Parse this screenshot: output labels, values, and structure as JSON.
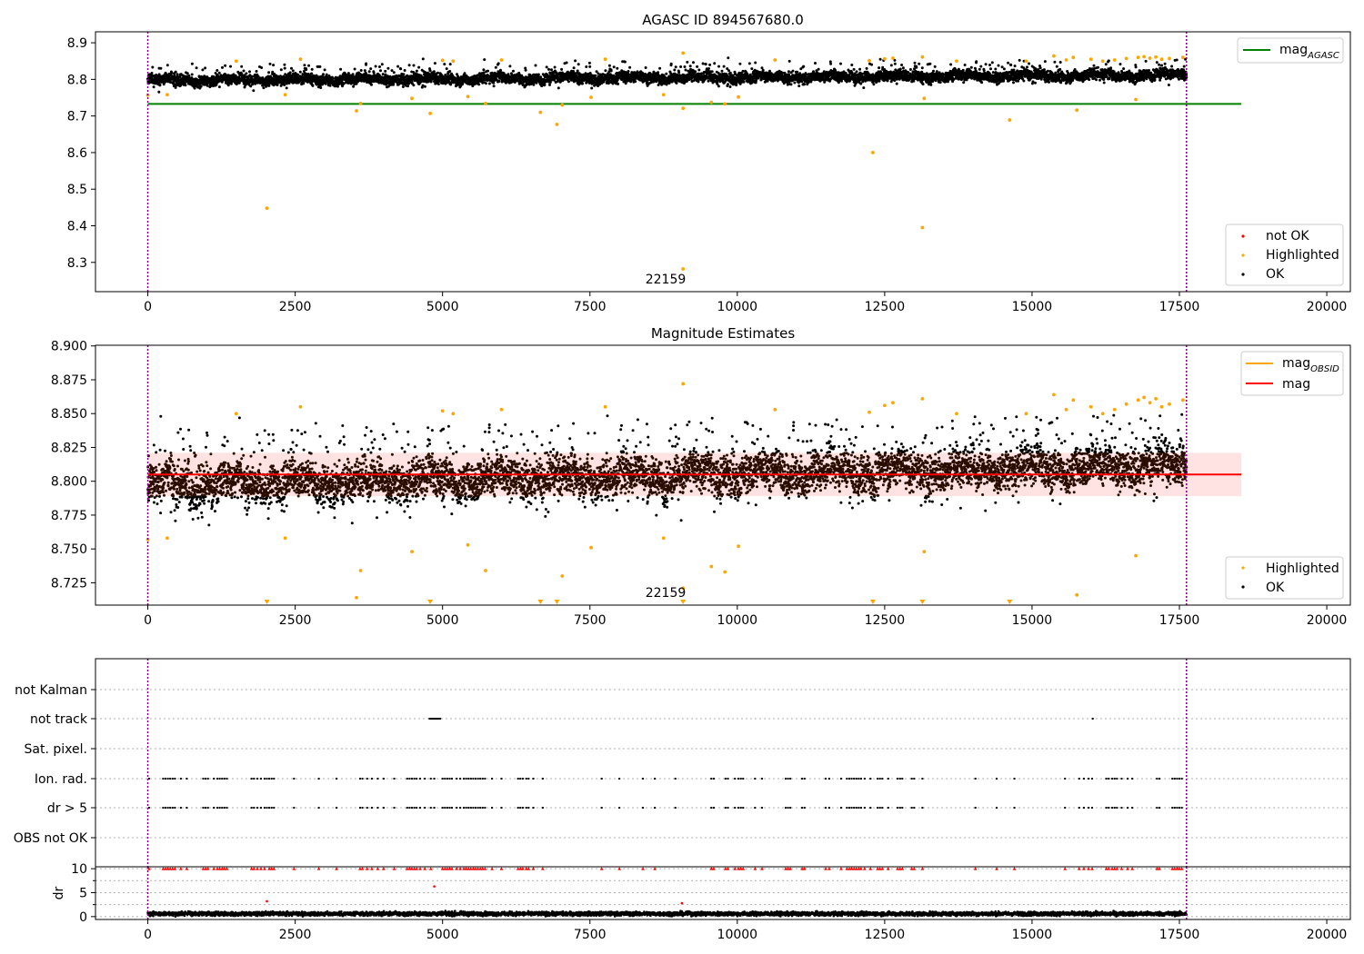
{
  "figure": {
    "width": 1500,
    "height": 1050
  },
  "chart_data": [
    {
      "id": "top",
      "type": "scatter",
      "title": "AGASC ID 894567680.0",
      "xlim": [
        -888,
        20400
      ],
      "ylim": [
        8.22,
        8.93
      ],
      "xticks": [
        0,
        2500,
        5000,
        7500,
        10000,
        12500,
        15000,
        17500,
        20000
      ],
      "yticks": [
        8.3,
        8.4,
        8.5,
        8.6,
        8.7,
        8.8,
        8.9
      ],
      "ytick_labels": [
        "8.3",
        "8.4",
        "8.5",
        "8.6",
        "8.7",
        "8.8",
        "8.9"
      ],
      "vlines": [
        0,
        17620
      ],
      "obsid_label": {
        "text": "22159",
        "x": 8800,
        "y": 8.25
      },
      "mag_agasc": {
        "value": 8.733,
        "x_range": [
          0,
          18550
        ],
        "color": "#008000"
      },
      "ok_series": {
        "name": "OK",
        "x_range": [
          0,
          17620
        ],
        "baseline_start": 8.797,
        "baseline_end": 8.812,
        "spread": 0.02,
        "approx_count": 7000,
        "color": "#000000"
      },
      "highlighted": {
        "name": "Highlighted",
        "color": "#ffa500",
        "points": [
          [
            0,
            8.757
          ],
          [
            330,
            8.758
          ],
          [
            1500,
            8.85
          ],
          [
            2020,
            8.448
          ],
          [
            2330,
            8.758
          ],
          [
            2590,
            8.855
          ],
          [
            3540,
            8.714
          ],
          [
            3610,
            8.734
          ],
          [
            4480,
            8.748
          ],
          [
            4790,
            8.707
          ],
          [
            5000,
            8.852
          ],
          [
            5180,
            8.85
          ],
          [
            5430,
            8.753
          ],
          [
            5730,
            8.734
          ],
          [
            6000,
            8.853
          ],
          [
            6660,
            8.71
          ],
          [
            6940,
            8.677
          ],
          [
            7030,
            8.73
          ],
          [
            7520,
            8.751
          ],
          [
            7760,
            8.855
          ],
          [
            8750,
            8.758
          ],
          [
            9080,
            8.872
          ],
          [
            9080,
            8.721
          ],
          [
            9080,
            8.282
          ],
          [
            9560,
            8.737
          ],
          [
            9790,
            8.733
          ],
          [
            10020,
            8.752
          ],
          [
            10640,
            8.853
          ],
          [
            12240,
            8.851
          ],
          [
            12300,
            8.6
          ],
          [
            12500,
            8.856
          ],
          [
            12640,
            8.858
          ],
          [
            13140,
            8.861
          ],
          [
            13140,
            8.395
          ],
          [
            13170,
            8.748
          ],
          [
            13720,
            8.85
          ],
          [
            14620,
            8.689
          ],
          [
            14900,
            8.85
          ],
          [
            15370,
            8.864
          ],
          [
            15580,
            8.853
          ],
          [
            15700,
            8.86
          ],
          [
            15760,
            8.716
          ],
          [
            16000,
            8.855
          ],
          [
            16200,
            8.85
          ],
          [
            16400,
            8.853
          ],
          [
            16600,
            8.857
          ],
          [
            16760,
            8.745
          ],
          [
            16800,
            8.86
          ],
          [
            16900,
            8.862
          ],
          [
            17000,
            8.858
          ],
          [
            17100,
            8.861
          ],
          [
            17200,
            8.855
          ],
          [
            17330,
            8.857
          ],
          [
            17560,
            8.86
          ]
        ]
      },
      "not_ok": {
        "name": "not OK",
        "color": "#ff0000",
        "points": []
      },
      "legend_upper": [
        {
          "label": "mag",
          "sub": "AGASC",
          "color": "#008000"
        }
      ],
      "legend_lower": [
        {
          "label": "not OK",
          "color": "#ff0000"
        },
        {
          "label": "Highlighted",
          "color": "#ffa500"
        },
        {
          "label": "OK",
          "color": "#000000"
        }
      ]
    },
    {
      "id": "mid",
      "type": "scatter",
      "title": "Magnitude Estimates",
      "xlim": [
        -888,
        20400
      ],
      "ylim": [
        8.7085,
        8.9005
      ],
      "xticks": [
        0,
        2500,
        5000,
        7500,
        10000,
        12500,
        15000,
        17500,
        20000
      ],
      "yticks": [
        8.725,
        8.75,
        8.775,
        8.8,
        8.825,
        8.85,
        8.875,
        8.9
      ],
      "ytick_labels": [
        "8.725",
        "8.750",
        "8.775",
        "8.800",
        "8.825",
        "8.850",
        "8.875",
        "8.900"
      ],
      "vlines": [
        0,
        17620
      ],
      "obsid_label": {
        "text": "22159",
        "x": 8800,
        "y": 8.712
      },
      "mag": {
        "value": 8.805,
        "x_range": [
          0,
          18550
        ],
        "color": "#ff0000"
      },
      "mag_band": {
        "low": 8.789,
        "high": 8.821,
        "x_range": [
          0,
          18550
        ]
      },
      "mag_obsid": {
        "value": 8.805,
        "color": "#ffa500"
      },
      "ok_series": {
        "name": "OK",
        "x_range": [
          0,
          17620
        ],
        "baseline_start": 8.797,
        "baseline_end": 8.812,
        "spread": 0.02,
        "approx_count": 7000,
        "color": "#000000"
      },
      "highlighted": {
        "name": "Highlighted",
        "color": "#ffa500",
        "points": [
          [
            0,
            8.757
          ],
          [
            330,
            8.758
          ],
          [
            1500,
            8.85
          ],
          [
            2330,
            8.758
          ],
          [
            2590,
            8.855
          ],
          [
            3540,
            8.714
          ],
          [
            3610,
            8.734
          ],
          [
            4480,
            8.748
          ],
          [
            5000,
            8.852
          ],
          [
            5180,
            8.85
          ],
          [
            5430,
            8.753
          ],
          [
            5730,
            8.734
          ],
          [
            6000,
            8.853
          ],
          [
            7030,
            8.73
          ],
          [
            7520,
            8.751
          ],
          [
            7760,
            8.855
          ],
          [
            8750,
            8.758
          ],
          [
            9080,
            8.872
          ],
          [
            9080,
            8.721
          ],
          [
            9560,
            8.737
          ],
          [
            9790,
            8.733
          ],
          [
            10020,
            8.752
          ],
          [
            10640,
            8.853
          ],
          [
            12240,
            8.851
          ],
          [
            12500,
            8.856
          ],
          [
            12640,
            8.858
          ],
          [
            13140,
            8.861
          ],
          [
            13170,
            8.748
          ],
          [
            13720,
            8.85
          ],
          [
            14900,
            8.85
          ],
          [
            15370,
            8.864
          ],
          [
            15580,
            8.853
          ],
          [
            15700,
            8.86
          ],
          [
            15760,
            8.716
          ],
          [
            16000,
            8.855
          ],
          [
            16200,
            8.85
          ],
          [
            16400,
            8.853
          ],
          [
            16600,
            8.857
          ],
          [
            16760,
            8.745
          ],
          [
            16800,
            8.86
          ],
          [
            16900,
            8.862
          ],
          [
            17000,
            8.858
          ],
          [
            17100,
            8.861
          ],
          [
            17200,
            8.855
          ],
          [
            17330,
            8.857
          ],
          [
            17560,
            8.86
          ]
        ]
      },
      "below_range_markers": [
        2020,
        4790,
        6660,
        6940,
        9080,
        12300,
        13140,
        14620
      ],
      "legend_upper": [
        {
          "label": "mag",
          "sub": "OBSID",
          "color": "#ffa500"
        },
        {
          "label": "mag",
          "sub": "",
          "color": "#ff0000"
        }
      ],
      "legend_lower": [
        {
          "label": "Highlighted",
          "color": "#ffa500"
        },
        {
          "label": "OK",
          "color": "#000000"
        }
      ]
    },
    {
      "id": "flags",
      "type": "scatter",
      "xlim": [
        -888,
        20400
      ],
      "vlines": [
        0,
        17620
      ],
      "categories": [
        "not Kalman",
        "not track",
        "Sat. pixel.",
        "Ion. rad.",
        "dr > 5",
        "OBS not OK"
      ],
      "flag_points": {
        "not Kalman": [],
        "not track": [
          4780,
          4800,
          4820,
          4840,
          4860,
          4880,
          4900,
          4920,
          4940,
          4960,
          16030
        ],
        "Sat. pixel.": [],
        "Ion. rad.": [
          20,
          260,
          300,
          340,
          380,
          420,
          460,
          560,
          660,
          940,
          980,
          1020,
          1120,
          1180,
          1220,
          1260,
          1300,
          1340,
          1760,
          1800,
          1860,
          1920,
          1980,
          2020,
          2060,
          2100,
          2140,
          2480,
          2900,
          3200,
          3600,
          3640,
          3720,
          3800,
          3900,
          4000,
          4180,
          4400,
          4440,
          4480,
          4520,
          4560,
          4620,
          4700,
          4800,
          4860,
          5000,
          5040,
          5080,
          5120,
          5160,
          5240,
          5300,
          5360,
          5400,
          5440,
          5480,
          5520,
          5560,
          5600,
          5640,
          5680,
          5720,
          5840,
          6000,
          6280,
          6320,
          6360,
          6420,
          6460,
          6540,
          6700,
          7700,
          8000,
          8400,
          8600,
          8950,
          9560,
          9600,
          9800,
          9840,
          9960,
          10020,
          10060,
          10100,
          10300,
          10420,
          10820,
          10860,
          10900,
          11100,
          11140,
          11500,
          11560,
          11760,
          11860,
          11900,
          11940,
          11980,
          12020,
          12060,
          12100,
          12160,
          12260,
          12380,
          12420,
          12460,
          12560,
          12720,
          12760,
          12800,
          12960,
          13000,
          13140,
          14040,
          14400,
          14700,
          15560,
          15800,
          15880,
          15960,
          16020,
          16260,
          16300,
          16360,
          16400,
          16440,
          16520,
          16620,
          16700,
          17120,
          17160,
          17380,
          17420,
          17460,
          17500,
          17540
        ],
        "dr > 5": [
          20,
          260,
          300,
          340,
          380,
          420,
          460,
          560,
          660,
          940,
          980,
          1020,
          1120,
          1180,
          1220,
          1260,
          1300,
          1340,
          1760,
          1800,
          1860,
          1920,
          1980,
          2020,
          2060,
          2100,
          2140,
          2480,
          2900,
          3200,
          3600,
          3640,
          3720,
          3800,
          3900,
          4000,
          4180,
          4400,
          4440,
          4480,
          4520,
          4560,
          4620,
          4700,
          4800,
          4860,
          5000,
          5040,
          5080,
          5120,
          5160,
          5240,
          5300,
          5360,
          5400,
          5440,
          5480,
          5520,
          5560,
          5600,
          5640,
          5680,
          5720,
          5840,
          6000,
          6280,
          6320,
          6360,
          6420,
          6460,
          6540,
          6700,
          7700,
          8000,
          8400,
          8600,
          8950,
          9560,
          9600,
          9800,
          9840,
          9960,
          10020,
          10060,
          10100,
          10300,
          10420,
          10820,
          10860,
          10900,
          11100,
          11140,
          11500,
          11560,
          11760,
          11860,
          11900,
          11940,
          11980,
          12020,
          12060,
          12100,
          12160,
          12260,
          12380,
          12420,
          12460,
          12560,
          12720,
          12760,
          12800,
          12960,
          13000,
          13140,
          14040,
          14400,
          14700,
          15560,
          15800,
          15880,
          15960,
          16020,
          16260,
          16300,
          16360,
          16400,
          16440,
          16520,
          16620,
          16700,
          17120,
          17160,
          17380,
          17420,
          17460,
          17500,
          17540
        ],
        "OBS not OK": []
      }
    },
    {
      "id": "dr",
      "type": "scatter",
      "ylabel": "dr",
      "xlim": [
        -888,
        20400
      ],
      "ylim": [
        -0.6,
        10.4
      ],
      "xticks": [
        0,
        2500,
        5000,
        7500,
        10000,
        12500,
        15000,
        17500,
        20000
      ],
      "yticks": [
        0,
        5,
        10
      ],
      "ytick_labels": [
        "0",
        "5",
        "10"
      ],
      "vlines": [
        0,
        17620
      ],
      "ok_series": {
        "x_range": [
          0,
          17620
        ],
        "base": 0.6,
        "spread": 0.45,
        "approx_count": 5000,
        "color": "#000000"
      },
      "capped": {
        "value": 10,
        "color": "#ff0000",
        "x": [
          20,
          260,
          300,
          340,
          380,
          420,
          460,
          560,
          660,
          940,
          980,
          1020,
          1120,
          1180,
          1220,
          1260,
          1300,
          1340,
          1760,
          1800,
          1860,
          1920,
          1980,
          2060,
          2100,
          2140,
          2480,
          2900,
          3200,
          3600,
          3640,
          3720,
          3800,
          3900,
          4000,
          4180,
          4400,
          4440,
          4480,
          4520,
          4560,
          4620,
          4700,
          4800,
          5000,
          5040,
          5080,
          5120,
          5160,
          5240,
          5300,
          5360,
          5400,
          5440,
          5480,
          5520,
          5560,
          5600,
          5640,
          5680,
          5720,
          5840,
          6000,
          6280,
          6320,
          6360,
          6420,
          6460,
          6540,
          6700,
          7700,
          8000,
          8400,
          8600,
          9560,
          9600,
          9800,
          9840,
          9960,
          10020,
          10060,
          10100,
          10300,
          10420,
          10820,
          10860,
          10900,
          11100,
          11140,
          11500,
          11560,
          11760,
          11860,
          11900,
          11940,
          11980,
          12020,
          12060,
          12100,
          12160,
          12260,
          12380,
          12420,
          12460,
          12560,
          12720,
          12760,
          12800,
          12960,
          13000,
          13140,
          14040,
          14400,
          14700,
          15560,
          15800,
          15880,
          15960,
          16020,
          16260,
          16300,
          16360,
          16400,
          16440,
          16520,
          16620,
          16700,
          17120,
          17160,
          17380,
          17420,
          17460,
          17500,
          17540
        ]
      },
      "outliers": [
        [
          2020,
          3.2
        ],
        [
          4860,
          6.3
        ],
        [
          9060,
          2.8
        ]
      ]
    }
  ]
}
